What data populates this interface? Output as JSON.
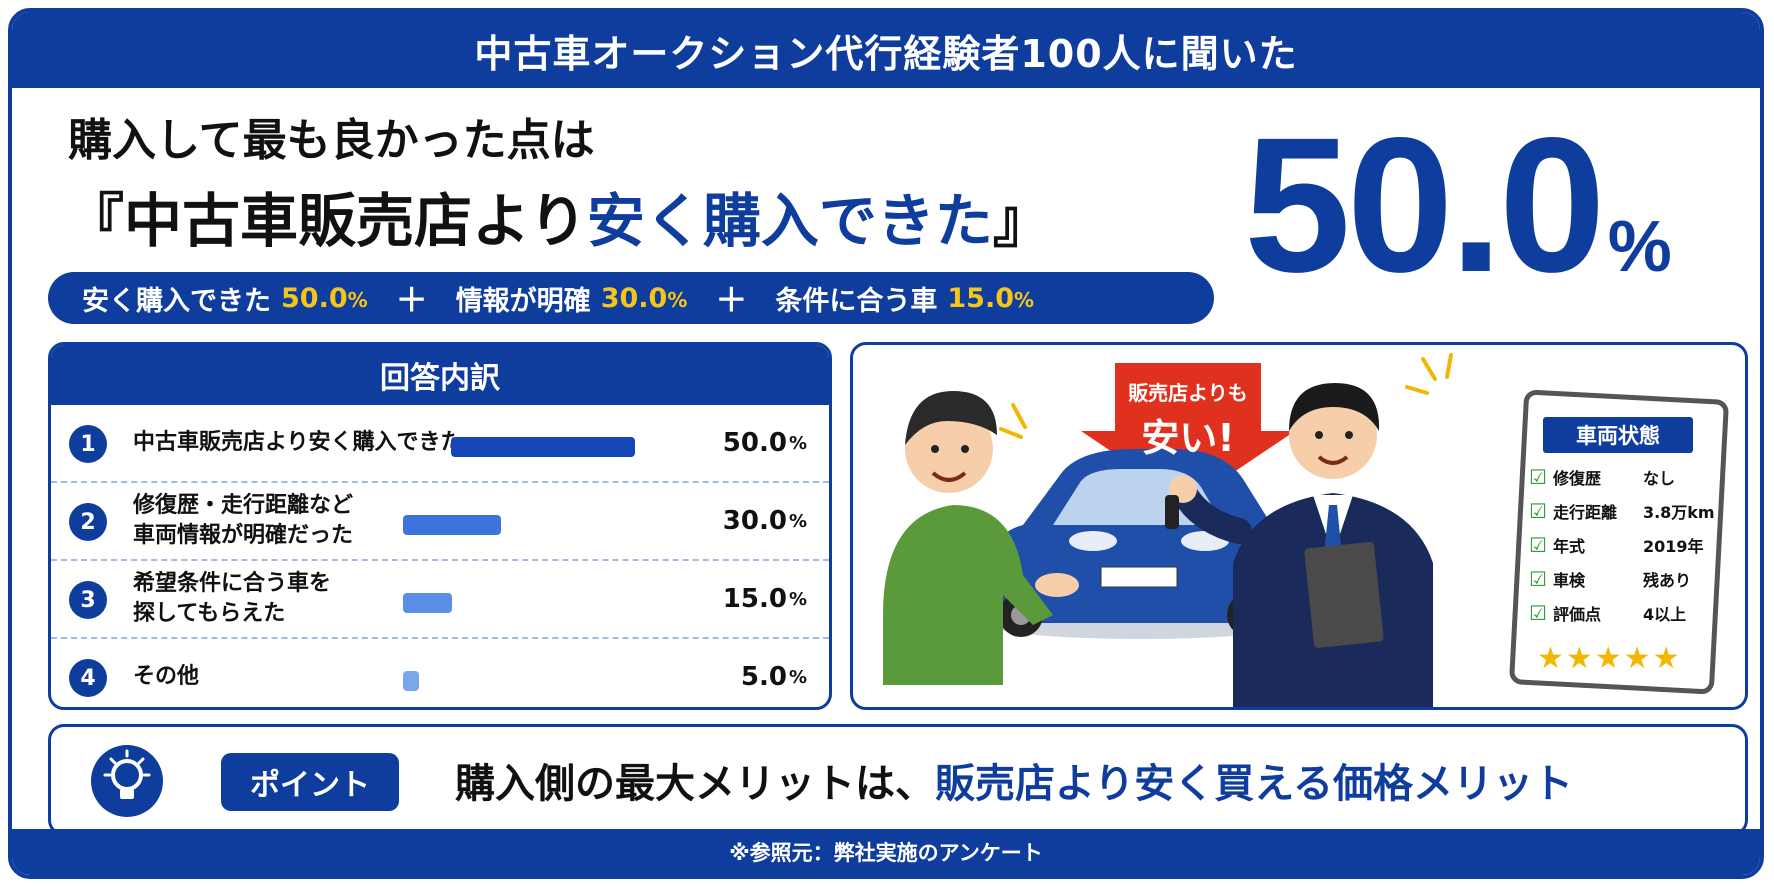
{
  "banner": "中古車オークション代行経験者100人に聞いた",
  "headline": {
    "line1": "購入して最も良かった点は",
    "line2_open": "『",
    "line2_main": "中古車販売店より",
    "line2_accent": "安く購入できた",
    "line2_close": "』"
  },
  "big_stat": {
    "value": "50.0",
    "unit": "%"
  },
  "summary": [
    {
      "label": "安く購入できた",
      "value": "50.0",
      "unit": "%"
    },
    {
      "label": "情報が明確",
      "value": "30.0",
      "unit": "%"
    },
    {
      "label": "条件に合う車",
      "value": "15.0",
      "unit": "%"
    }
  ],
  "summary_plus": "＋",
  "breakdown_title": "回答内訳",
  "chart_data": {
    "type": "bar",
    "title": "回答内訳",
    "categories": [
      "中古車販売店より安く購入できた",
      "修復歴・走行距離など\n車両情報が明確だった",
      "希望条件に合う車を\n探してもらえた",
      "その他"
    ],
    "values": [
      50.0,
      30.0,
      15.0,
      5.0
    ],
    "value_labels": [
      "50.0",
      "30.0",
      "15.0",
      "5.0"
    ],
    "unit": "%",
    "ranks": [
      "1",
      "2",
      "3",
      "4"
    ],
    "colors": [
      "#1446b8",
      "#3c74dc",
      "#5b8ee6",
      "#7aa6ec"
    ]
  },
  "illustration": {
    "arrow_small": "販売店よりも",
    "arrow_big": "安い!",
    "card_title": "車両状態",
    "card_items": [
      {
        "k": "修復歴",
        "v": "なし"
      },
      {
        "k": "走行距離",
        "v": "3.8万km"
      },
      {
        "k": "年式",
        "v": "2019年"
      },
      {
        "k": "車検",
        "v": "残あり"
      },
      {
        "k": "評価点",
        "v": "4以上"
      }
    ],
    "stars": "★★★★★"
  },
  "point": {
    "badge": "ポイント",
    "text_main": "購入側の最大メリットは、",
    "text_accent": "販売店より安く買える価格メリット"
  },
  "footer": "※参照元：弊社実施のアンケート",
  "colors": {
    "brand": "#0f3d9e",
    "accent_yellow": "#f5c518",
    "check_green": "#2f9b3a",
    "arrow_red": "#e0311f"
  }
}
